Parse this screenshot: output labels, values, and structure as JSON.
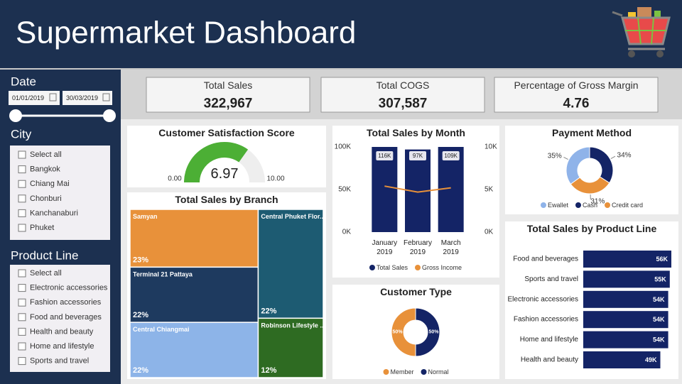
{
  "header": {
    "title": "Supermarket Dashboard"
  },
  "filters": {
    "date": {
      "label": "Date",
      "start": "01/01/2019",
      "end": "30/03/2019"
    },
    "city": {
      "label": "City",
      "options": [
        "Select all",
        "Bangkok",
        "Chiang Mai",
        "Chonburi",
        "Kanchanaburi",
        "Phuket"
      ]
    },
    "product_line": {
      "label": "Product Line",
      "options": [
        "Select all",
        "Electronic accessories",
        "Fashion accessories",
        "Food and beverages",
        "Health and beauty",
        "Home and lifestyle",
        "Sports and travel"
      ]
    }
  },
  "kpis": [
    {
      "label": "Total Sales",
      "value": "322,967"
    },
    {
      "label": "Total COGS",
      "value": "307,587"
    },
    {
      "label": "Percentage of Gross Margin",
      "value": "4.76"
    }
  ],
  "chart_data": [
    {
      "type": "gauge",
      "title": "Customer Satisfaction Score",
      "value": 6.97,
      "color": "#4caf35",
      "range": [
        {
          "value": 0,
          "label": "0.00"
        },
        {
          "value": 10,
          "label": "10.00"
        }
      ]
    },
    {
      "type": "treemap",
      "title": "Total Sales by Branch",
      "categories": [
        "Samyan",
        "Terminal 21 Pattaya",
        "Central Chiangmai",
        "Central Phuket Flor...",
        "Robinson Lifestyle ..."
      ],
      "values": [
        23,
        22,
        22,
        22,
        12
      ],
      "value_labels": [
        "23%",
        "22%",
        "22%",
        "22%",
        "12%"
      ],
      "colors": [
        "#e8913a",
        "#1e3a5f",
        "#8db4e8",
        "#1d5b72",
        "#2e6b22"
      ]
    },
    {
      "type": "bar_line",
      "title": "Total Sales by Month",
      "categories": [
        "January 2019",
        "February 2019",
        "March 2019"
      ],
      "series": [
        {
          "name": "Total Sales",
          "color": "#142466",
          "values": [
            116000,
            97000,
            109000
          ],
          "value_labels": [
            "116K",
            "97K",
            "109K"
          ]
        },
        {
          "name": "Gross Income",
          "color": "#e8913a",
          "values": [
            5400,
            4700,
            5200
          ],
          "axis": "y2"
        }
      ],
      "ylim": [
        0,
        100000
      ],
      "yticks": [
        {
          "value": 0,
          "label": "0K"
        },
        {
          "value": 50000,
          "label": "50K"
        },
        {
          "value": 100000,
          "label": "100K"
        }
      ],
      "y2lim": [
        0,
        10000
      ],
      "y2ticks": [
        {
          "value": 0,
          "label": "0K"
        },
        {
          "value": 5000,
          "label": "5K"
        },
        {
          "value": 10000,
          "label": "10K"
        }
      ]
    },
    {
      "type": "donut",
      "title": "Payment Method",
      "categories": [
        "Ewallet",
        "Cash",
        "Credit card"
      ],
      "values": [
        35,
        34,
        31
      ],
      "value_labels": [
        "35%",
        "34%",
        "31%"
      ],
      "colors": [
        "#8fb3e9",
        "#142466",
        "#e8913a"
      ],
      "labels": "outside"
    },
    {
      "type": "donut",
      "title": "Customer Type",
      "categories": [
        "Member",
        "Normal"
      ],
      "values": [
        50,
        50
      ],
      "value_labels": [
        "50%",
        "50%"
      ],
      "colors": [
        "#e8913a",
        "#142466"
      ],
      "labels": "inside"
    },
    {
      "type": "hbar",
      "title": "Total Sales by Product Line",
      "categories": [
        "Food and beverages",
        "Sports and travel",
        "Electronic accessories",
        "Fashion accessories",
        "Home and lifestyle",
        "Health and beauty"
      ],
      "values": [
        56000,
        55000,
        54000,
        54000,
        54000,
        49000
      ],
      "value_labels": [
        "56K",
        "55K",
        "54K",
        "54K",
        "54K",
        "49K"
      ],
      "color": "#142466"
    }
  ]
}
